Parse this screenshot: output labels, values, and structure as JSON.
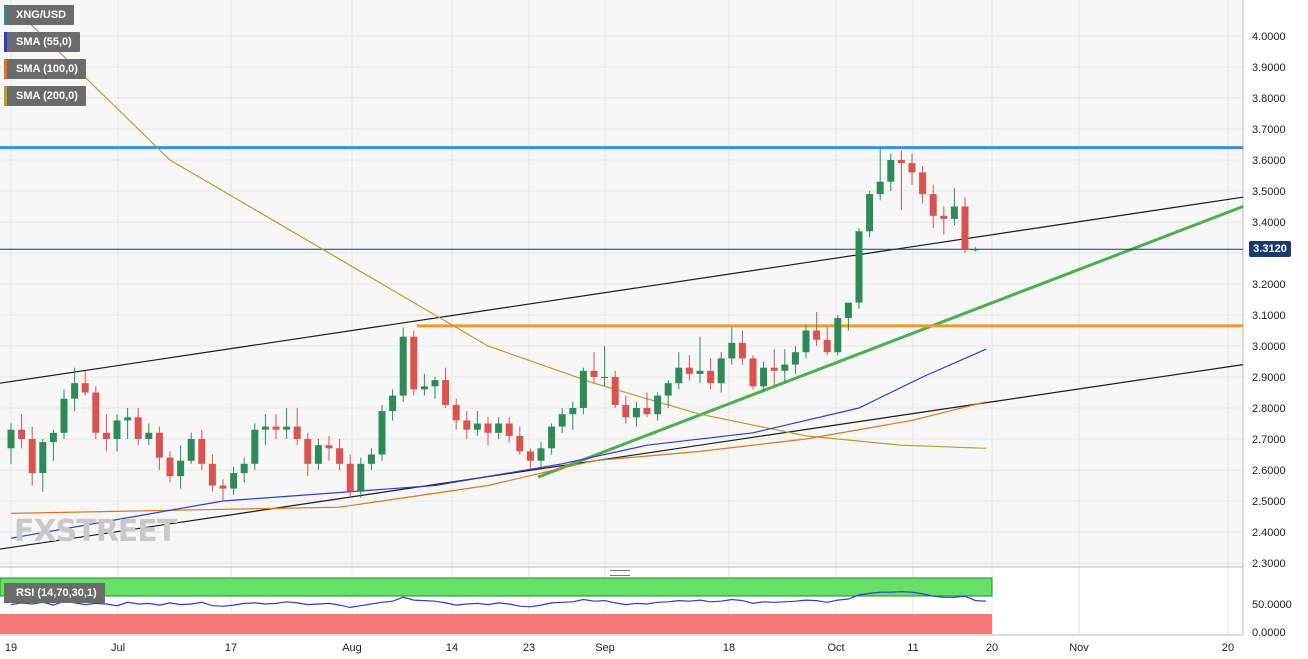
{
  "legends": {
    "symbol": {
      "label": "XNG/USD",
      "color": "#3a8a8a"
    },
    "sma55": {
      "label": "SMA (55,0)",
      "color": "#2c3ecf"
    },
    "sma100": {
      "label": "SMA (100,0)",
      "color": "#e0761e"
    },
    "sma200": {
      "label": "SMA (200,0)",
      "color": "#b5a02e"
    },
    "rsi": {
      "label": "RSI (14,70,30,1)"
    }
  },
  "watermark": "FXSTREET",
  "last_price": "3.3120",
  "colors": {
    "up_candle": "#2e8b57",
    "down_candle": "#d9534f",
    "resistance": "#3a8fe0",
    "support": "#f39a1c",
    "trendline": "#4caf50",
    "channel": "#1a1a1a",
    "price_line": "#1a3a6b",
    "rsi_overbought": "#66e066",
    "rsi_oversold": "#f47a7a",
    "rsi_line": "#2c3ecf"
  },
  "chart_data": {
    "type": "candlestick",
    "ylim": [
      2.3,
      4.08
    ],
    "y_ticks": [
      "4.0000",
      "3.9000",
      "3.8000",
      "3.7000",
      "3.6000",
      "3.5000",
      "3.4000",
      "3.3000",
      "3.2000",
      "3.1000",
      "3.0000",
      "2.9000",
      "2.8000",
      "2.7000",
      "2.6000",
      "2.5000",
      "2.4000",
      "2.3000"
    ],
    "x_ticks": [
      "19",
      "Jul",
      "17",
      "Aug",
      "14",
      "23",
      "Sep",
      "18",
      "Oct",
      "11",
      "20",
      "Nov",
      "20"
    ],
    "rsi_ticks": [
      "50.0000",
      "0.0000"
    ],
    "candles": [
      [
        2.67,
        2.75,
        2.62,
        2.73
      ],
      [
        2.73,
        2.78,
        2.67,
        2.7
      ],
      [
        2.7,
        2.74,
        2.55,
        2.59
      ],
      [
        2.59,
        2.7,
        2.53,
        2.69
      ],
      [
        2.69,
        2.73,
        2.63,
        2.72
      ],
      [
        2.72,
        2.86,
        2.7,
        2.83
      ],
      [
        2.83,
        2.93,
        2.79,
        2.88
      ],
      [
        2.88,
        2.92,
        2.84,
        2.85
      ],
      [
        2.85,
        2.87,
        2.7,
        2.72
      ],
      [
        2.72,
        2.78,
        2.66,
        2.7
      ],
      [
        2.7,
        2.78,
        2.66,
        2.76
      ],
      [
        2.76,
        2.8,
        2.7,
        2.77
      ],
      [
        2.77,
        2.8,
        2.68,
        2.7
      ],
      [
        2.7,
        2.75,
        2.68,
        2.72
      ],
      [
        2.72,
        2.74,
        2.6,
        2.64
      ],
      [
        2.64,
        2.66,
        2.56,
        2.58
      ],
      [
        2.58,
        2.68,
        2.54,
        2.63
      ],
      [
        2.63,
        2.72,
        2.62,
        2.7
      ],
      [
        2.7,
        2.73,
        2.6,
        2.62
      ],
      [
        2.62,
        2.65,
        2.53,
        2.55
      ],
      [
        2.55,
        2.57,
        2.5,
        2.54
      ],
      [
        2.54,
        2.61,
        2.52,
        2.59
      ],
      [
        2.59,
        2.64,
        2.56,
        2.62
      ],
      [
        2.62,
        2.75,
        2.6,
        2.73
      ],
      [
        2.73,
        2.78,
        2.68,
        2.74
      ],
      [
        2.74,
        2.78,
        2.7,
        2.73
      ],
      [
        2.73,
        2.8,
        2.7,
        2.74
      ],
      [
        2.74,
        2.8,
        2.68,
        2.7
      ],
      [
        2.7,
        2.72,
        2.58,
        2.62
      ],
      [
        2.62,
        2.7,
        2.6,
        2.68
      ],
      [
        2.68,
        2.71,
        2.63,
        2.67
      ],
      [
        2.67,
        2.7,
        2.6,
        2.62
      ],
      [
        2.62,
        2.65,
        2.51,
        2.53
      ],
      [
        2.53,
        2.64,
        2.51,
        2.62
      ],
      [
        2.62,
        2.67,
        2.6,
        2.65
      ],
      [
        2.65,
        2.81,
        2.63,
        2.79
      ],
      [
        2.79,
        2.86,
        2.76,
        2.84
      ],
      [
        2.84,
        3.06,
        2.82,
        3.03
      ],
      [
        3.03,
        3.05,
        2.84,
        2.86
      ],
      [
        2.86,
        2.91,
        2.84,
        2.87
      ],
      [
        2.87,
        2.9,
        2.83,
        2.89
      ],
      [
        2.89,
        2.93,
        2.8,
        2.81
      ],
      [
        2.81,
        2.83,
        2.73,
        2.76
      ],
      [
        2.76,
        2.79,
        2.7,
        2.73
      ],
      [
        2.73,
        2.79,
        2.71,
        2.75
      ],
      [
        2.75,
        2.77,
        2.68,
        2.72
      ],
      [
        2.72,
        2.77,
        2.7,
        2.75
      ],
      [
        2.75,
        2.77,
        2.69,
        2.71
      ],
      [
        2.71,
        2.74,
        2.65,
        2.66
      ],
      [
        2.66,
        2.67,
        2.6,
        2.63
      ],
      [
        2.63,
        2.69,
        2.61,
        2.67
      ],
      [
        2.67,
        2.75,
        2.65,
        2.74
      ],
      [
        2.74,
        2.8,
        2.72,
        2.78
      ],
      [
        2.78,
        2.82,
        2.73,
        2.8
      ],
      [
        2.8,
        2.93,
        2.78,
        2.92
      ],
      [
        2.92,
        2.98,
        2.88,
        2.9
      ],
      [
        2.9,
        3.0,
        2.87,
        2.9
      ],
      [
        2.9,
        2.92,
        2.8,
        2.81
      ],
      [
        2.81,
        2.84,
        2.75,
        2.77
      ],
      [
        2.77,
        2.82,
        2.74,
        2.8
      ],
      [
        2.8,
        2.85,
        2.77,
        2.78
      ],
      [
        2.78,
        2.85,
        2.76,
        2.84
      ],
      [
        2.84,
        2.89,
        2.8,
        2.88
      ],
      [
        2.88,
        2.98,
        2.86,
        2.93
      ],
      [
        2.93,
        2.97,
        2.89,
        2.91
      ],
      [
        2.91,
        3.03,
        2.88,
        2.92
      ],
      [
        2.92,
        2.96,
        2.86,
        2.88
      ],
      [
        2.88,
        2.98,
        2.85,
        2.96
      ],
      [
        2.96,
        3.06,
        2.94,
        3.01
      ],
      [
        3.01,
        3.05,
        2.94,
        2.96
      ],
      [
        2.96,
        2.97,
        2.86,
        2.87
      ],
      [
        2.87,
        2.95,
        2.85,
        2.93
      ],
      [
        2.93,
        2.99,
        2.87,
        2.92
      ],
      [
        2.92,
        2.99,
        2.88,
        2.94
      ],
      [
        2.94,
        3.0,
        2.91,
        2.98
      ],
      [
        2.98,
        3.07,
        2.96,
        3.05
      ],
      [
        3.05,
        3.11,
        3.0,
        3.02
      ],
      [
        3.02,
        3.06,
        2.97,
        2.98
      ],
      [
        2.98,
        3.1,
        2.97,
        3.09
      ],
      [
        3.09,
        3.14,
        3.05,
        3.14
      ],
      [
        3.14,
        3.38,
        3.12,
        3.37
      ],
      [
        3.37,
        3.5,
        3.35,
        3.49
      ],
      [
        3.49,
        3.64,
        3.47,
        3.53
      ],
      [
        3.53,
        3.62,
        3.5,
        3.6
      ],
      [
        3.6,
        3.63,
        3.44,
        3.59
      ],
      [
        3.59,
        3.62,
        3.52,
        3.56
      ],
      [
        3.56,
        3.58,
        3.46,
        3.49
      ],
      [
        3.49,
        3.52,
        3.38,
        3.42
      ],
      [
        3.42,
        3.45,
        3.36,
        3.41
      ],
      [
        3.41,
        3.51,
        3.39,
        3.45
      ],
      [
        3.45,
        3.48,
        3.3,
        3.31
      ],
      [
        3.31,
        3.32,
        3.305,
        3.312
      ]
    ],
    "sma55": [
      [
        0,
        2.38
      ],
      [
        20,
        2.5
      ],
      [
        40,
        2.55
      ],
      [
        52,
        2.62
      ],
      [
        60,
        2.68
      ],
      [
        70,
        2.72
      ],
      [
        80,
        2.8
      ],
      [
        86,
        2.9
      ],
      [
        92,
        2.99
      ]
    ],
    "sma100": [
      [
        0,
        2.46
      ],
      [
        15,
        2.47
      ],
      [
        31,
        2.48
      ],
      [
        35,
        2.5
      ],
      [
        45,
        2.55
      ],
      [
        55,
        2.63
      ],
      [
        65,
        2.66
      ],
      [
        75,
        2.7
      ],
      [
        85,
        2.76
      ],
      [
        92,
        2.82
      ]
    ],
    "sma200": [
      [
        0,
        4.1
      ],
      [
        15,
        3.6
      ],
      [
        30,
        3.3
      ],
      [
        45,
        3.0
      ],
      [
        55,
        2.88
      ],
      [
        65,
        2.78
      ],
      [
        75,
        2.71
      ],
      [
        84,
        2.68
      ],
      [
        92,
        2.67
      ]
    ],
    "resistance_level": 3.64,
    "support_level": 3.065,
    "rsi": [
      49,
      52,
      50,
      53,
      48,
      55,
      52,
      49,
      51,
      50,
      47,
      53,
      50,
      51,
      48,
      52,
      49,
      50,
      53,
      47,
      46,
      48,
      51,
      52,
      50,
      51,
      54,
      52,
      49,
      50,
      51,
      48,
      44,
      47,
      50,
      53,
      55,
      62,
      57,
      56,
      55,
      52,
      48,
      50,
      51,
      49,
      52,
      50,
      46,
      45,
      48,
      52,
      53,
      54,
      58,
      55,
      56,
      52,
      49,
      51,
      50,
      53,
      54,
      56,
      55,
      57,
      54,
      55,
      58,
      56,
      51,
      54,
      53,
      54,
      55,
      57,
      56,
      53,
      57,
      59,
      66,
      69,
      71,
      71,
      72,
      71,
      68,
      64,
      62,
      62,
      64,
      56,
      55
    ]
  }
}
